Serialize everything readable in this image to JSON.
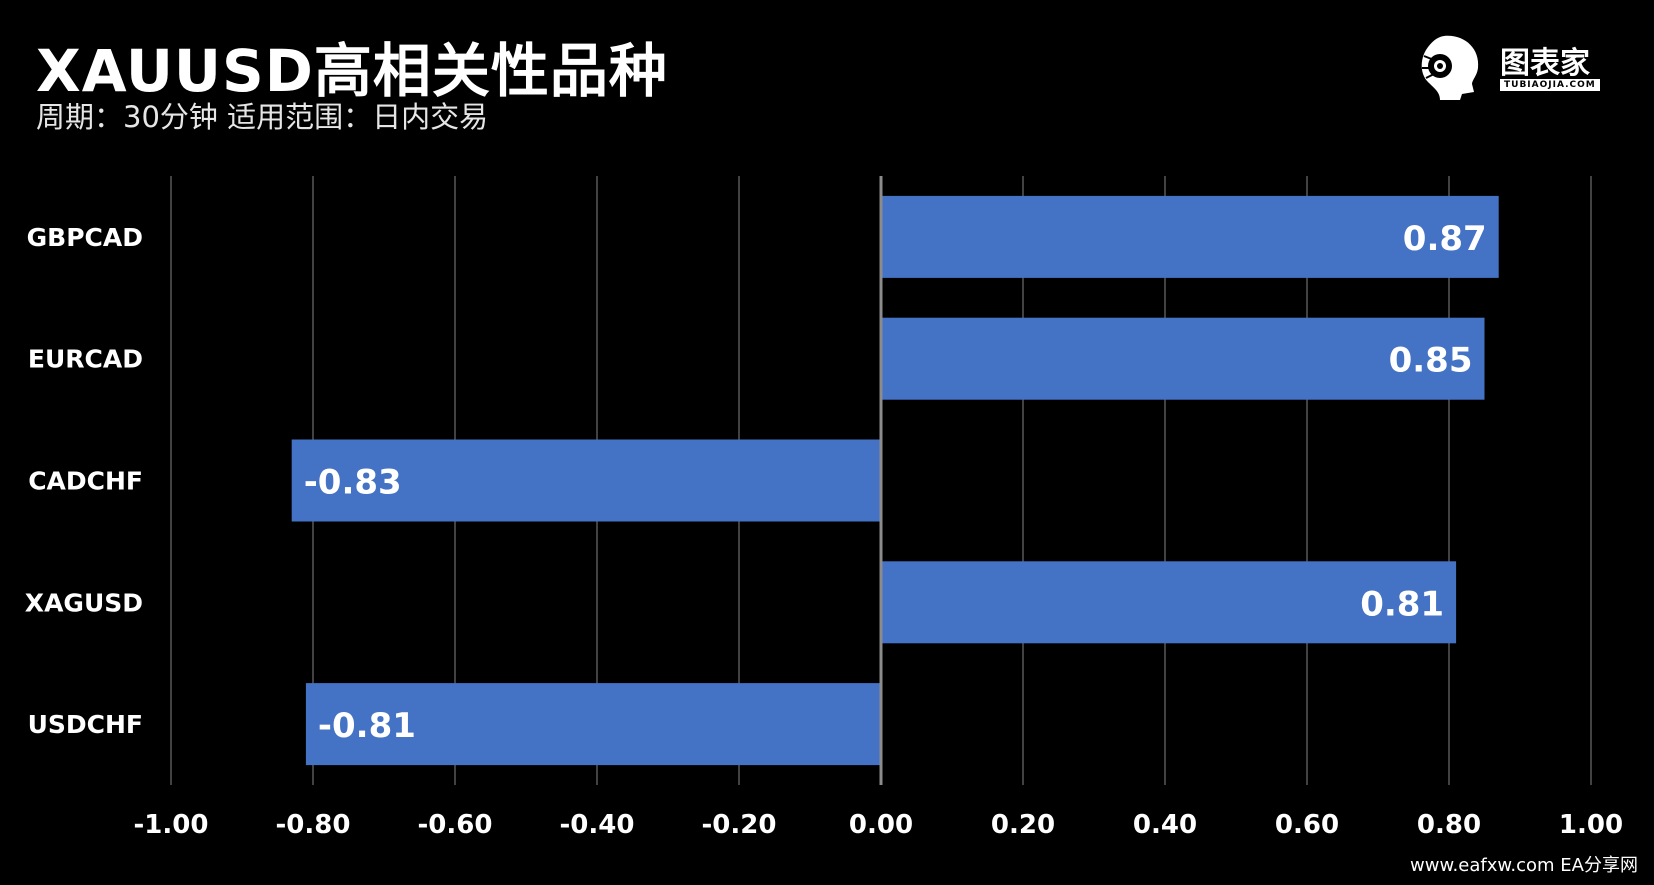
{
  "header": {
    "title": "XAUUSD高相关性品种",
    "subtitle": "周期：30分钟 适用范围：日内交易"
  },
  "logo": {
    "text": "图表家",
    "subtext": "TUBIAOJIA.COM",
    "icon": "head-gear-icon"
  },
  "footer": {
    "text": "www.eafxw.com EA分享网"
  },
  "colors": {
    "background": "#000000",
    "bar": "#4472c4",
    "grid": "#595959",
    "text": "#ffffff"
  },
  "chart_data": {
    "type": "bar",
    "orientation": "horizontal",
    "categories": [
      "GBPCAD",
      "EURCAD",
      "CADCHF",
      "XAGUSD",
      "USDCHF"
    ],
    "values": [
      0.87,
      0.85,
      -0.83,
      0.81,
      -0.81
    ],
    "value_labels": [
      "0.87",
      "0.85",
      "-0.83",
      "0.81",
      "-0.81"
    ],
    "xlim": [
      -1.0,
      1.0
    ],
    "xticks": [
      "-1.00",
      "-0.80",
      "-0.60",
      "-0.40",
      "-0.20",
      "0.00",
      "0.20",
      "0.40",
      "0.60",
      "0.80",
      "1.00"
    ],
    "grid": true,
    "legend": "none"
  }
}
